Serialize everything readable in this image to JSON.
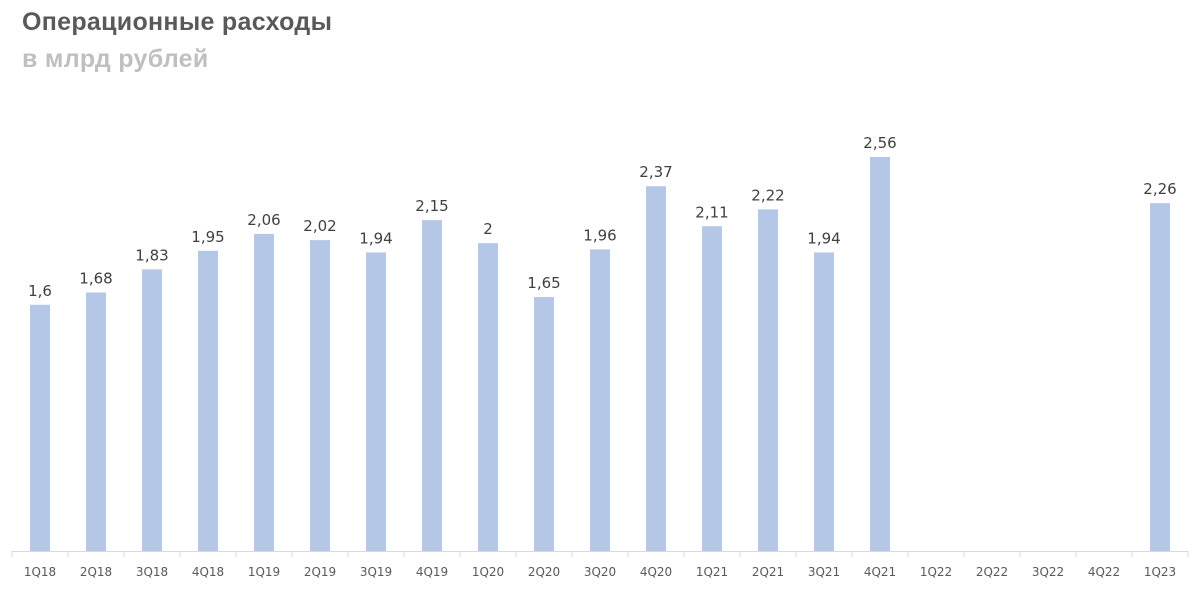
{
  "chart_data": {
    "type": "bar",
    "title": "Операционные расходы",
    "subtitle": "в млрд рублей",
    "categories": [
      "1Q18",
      "2Q18",
      "3Q18",
      "4Q18",
      "1Q19",
      "2Q19",
      "3Q19",
      "4Q19",
      "1Q20",
      "2Q20",
      "3Q20",
      "4Q20",
      "1Q21",
      "2Q21",
      "3Q21",
      "4Q21",
      "1Q22",
      "2Q22",
      "3Q22",
      "4Q22",
      "1Q23"
    ],
    "values": [
      1.6,
      1.68,
      1.83,
      1.95,
      2.06,
      2.02,
      1.94,
      2.15,
      2,
      1.65,
      1.96,
      2.37,
      2.11,
      2.22,
      1.94,
      2.56,
      null,
      null,
      null,
      null,
      2.26
    ],
    "value_labels": [
      "1,6",
      "1,68",
      "1,83",
      "1,95",
      "2,06",
      "2,02",
      "1,94",
      "2,15",
      "2",
      "1,65",
      "1,96",
      "2,37",
      "2,11",
      "2,22",
      "1,94",
      "2,56",
      "",
      "",
      "",
      "",
      "2,26"
    ],
    "xlabel": "",
    "ylabel": "",
    "ylim": [
      0,
      2.56
    ],
    "grid": false,
    "legend": "none",
    "colors": {
      "bar": "#b4c7e7",
      "axis": "#d9d9d9"
    }
  }
}
